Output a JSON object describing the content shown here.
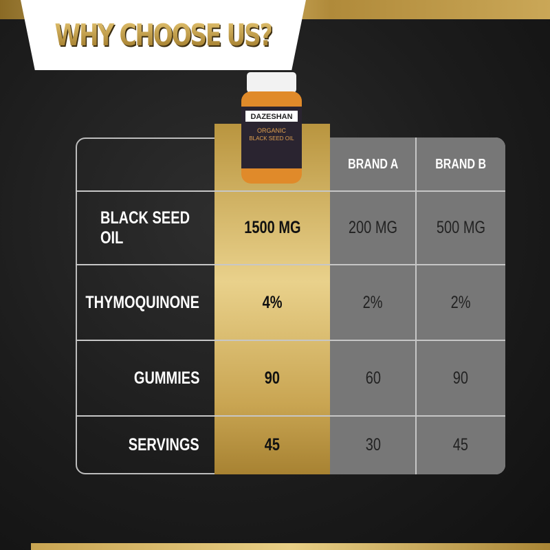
{
  "header": {
    "title": "WHY CHOOSE US?"
  },
  "product": {
    "brand": "DAZESHAN",
    "name": "ORGANIC BLACK SEED OIL"
  },
  "colors": {
    "gold": "#c9a552",
    "gray": "#777777",
    "background": "#1c1c1c"
  },
  "table": {
    "columns": [
      "",
      "",
      "BRAND A",
      "BRAND B"
    ],
    "rows": [
      {
        "label": "BLACK SEED OIL",
        "ours": "1500 MG",
        "brand_a": "200 MG",
        "brand_b": "500 MG"
      },
      {
        "label": "THYMOQUINONE",
        "ours": "4%",
        "brand_a": "2%",
        "brand_b": "2%"
      },
      {
        "label": "GUMMIES",
        "ours": "90",
        "brand_a": "60",
        "brand_b": "90"
      },
      {
        "label": "SERVINGS",
        "ours": "45",
        "brand_a": "30",
        "brand_b": "45"
      }
    ]
  }
}
